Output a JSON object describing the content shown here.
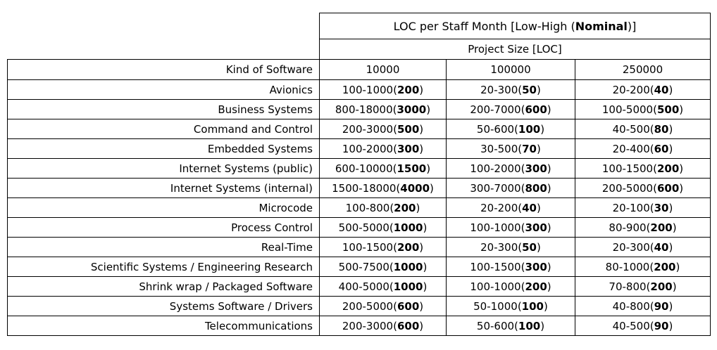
{
  "colors": {
    "border": "#000000",
    "background": "#ffffff",
    "text": "#000000"
  },
  "table": {
    "title": "LOC per Staff Month [Low-High (Nominal)]",
    "subtitle": "Project Size [LOC]",
    "kind_header": "Kind of Software",
    "size_headers": [
      "10000",
      "100000",
      "250000"
    ],
    "rows": [
      {
        "kind": "Avionics",
        "c1": "100-1000(200)",
        "c2": "20-300(50)",
        "c3": "20-200(40)"
      },
      {
        "kind": "Business Systems",
        "c1": "800-18000(3000)",
        "c2": "200-7000(600)",
        "c3": "100-5000(500)"
      },
      {
        "kind": "Command and Control",
        "c1": "200-3000(500)",
        "c2": "50-600(100)",
        "c3": "40-500(80)"
      },
      {
        "kind": "Embedded Systems",
        "c1": "100-2000(300)",
        "c2": "30-500(70)",
        "c3": "20-400(60)"
      },
      {
        "kind": "Internet Systems (public)",
        "c1": "600-10000(1500)",
        "c2": "100-2000(300)",
        "c3": "100-1500(200)"
      },
      {
        "kind": "Internet Systems (internal)",
        "c1": "1500-18000(4000)",
        "c2": "300-7000(800)",
        "c3": "200-5000(600)"
      },
      {
        "kind": "Microcode",
        "c1": "100-800(200)",
        "c2": "20-200(40)",
        "c3": "20-100(30)"
      },
      {
        "kind": "Process Control",
        "c1": "500-5000(1000)",
        "c2": "100-1000(300)",
        "c3": "80-900(200)"
      },
      {
        "kind": "Real-Time",
        "c1": "100-1500(200)",
        "c2": "20-300(50)",
        "c3": "20-300(40)"
      },
      {
        "kind": "Scientific Systems / Engineering Research",
        "c1": "500-7500(1000)",
        "c2": "100-1500(300)",
        "c3": "80-1000(200)"
      },
      {
        "kind": "Shrink wrap / Packaged Software",
        "c1": "400-5000(1000)",
        "c2": "100-1000(200)",
        "c3": "70-800(200)"
      },
      {
        "kind": "Systems Software / Drivers",
        "c1": "200-5000(600)",
        "c2": "50-1000(100)",
        "c3": "40-800(90)"
      },
      {
        "kind": "Telecommunications",
        "c1": "200-3000(600)",
        "c2": "50-600(100)",
        "c3": "40-500(90)"
      }
    ]
  }
}
